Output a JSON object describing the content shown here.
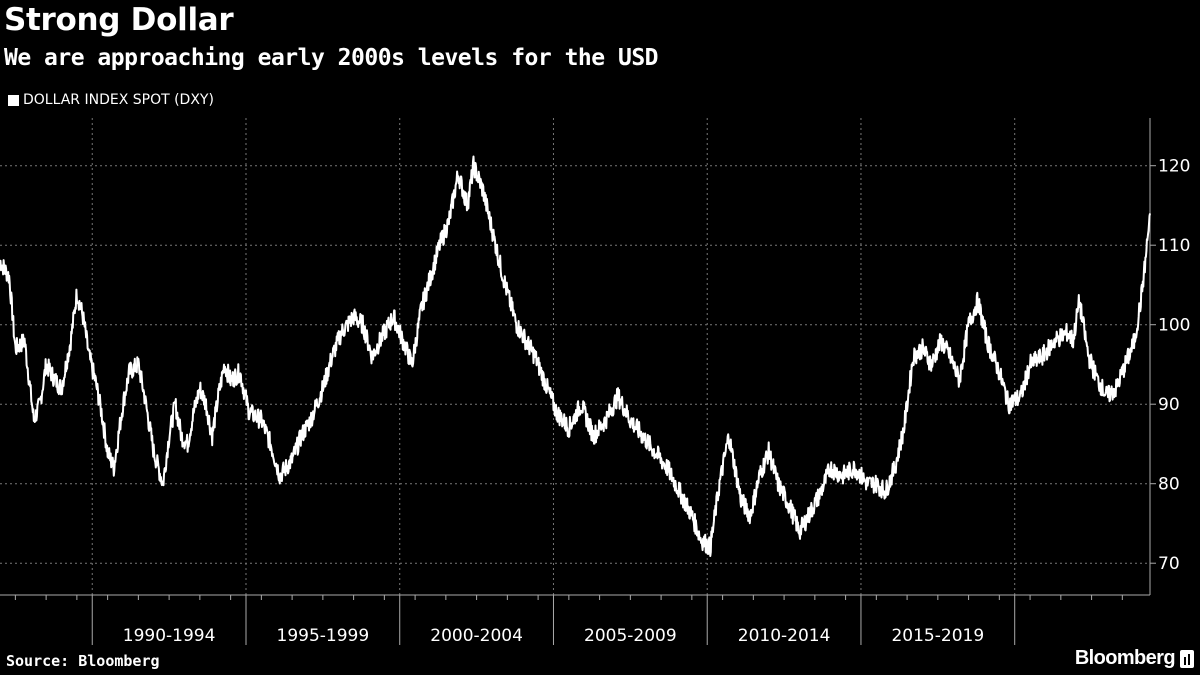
{
  "header": {
    "title": "Strong Dollar",
    "subtitle": "We are approaching early 2000s levels for the USD"
  },
  "legend": {
    "label": "DOLLAR INDEX SPOT (DXY)",
    "swatch_color": "#ffffff"
  },
  "footer": {
    "source": "Source: Bloomberg",
    "brand": "Bloomberg"
  },
  "colors": {
    "background": "#000000",
    "line": "#ffffff",
    "grid": "#777777",
    "axis": "#aaaaaa"
  },
  "chart_data": {
    "type": "line",
    "title": "Strong Dollar",
    "subtitle": "We are approaching early 2000s levels for the USD",
    "xlabel": "",
    "ylabel": "",
    "xlim": [
      1985.5,
      2022.9
    ],
    "ylim": [
      66,
      126
    ],
    "y_ticks": [
      70,
      80,
      90,
      100,
      110,
      120
    ],
    "x_ticks": [
      1988.5,
      1993.5,
      1998.5,
      2003.5,
      2008.5,
      2013.5,
      2018.5
    ],
    "x_tick_labels": [
      "1990-1994",
      "1995-1999",
      "2000-2004",
      "2005-2009",
      "2010-2014",
      "2015-2019"
    ],
    "grid": true,
    "legend_position": "top-left",
    "series": [
      {
        "name": "DOLLAR INDEX SPOT (DXY)",
        "x": [
          1985.5,
          1985.8,
          1986.0,
          1986.3,
          1986.6,
          1986.8,
          1987.0,
          1987.3,
          1987.5,
          1987.8,
          1988.0,
          1988.2,
          1988.4,
          1988.6,
          1988.8,
          1989.0,
          1989.2,
          1989.5,
          1989.7,
          1990.0,
          1990.2,
          1990.5,
          1990.8,
          1991.0,
          1991.2,
          1991.4,
          1991.6,
          1991.8,
          1992.0,
          1992.2,
          1992.4,
          1992.6,
          1992.8,
          1993.0,
          1993.3,
          1993.6,
          1994.0,
          1994.3,
          1994.6,
          1995.0,
          1995.3,
          1995.6,
          1996.0,
          1996.3,
          1996.6,
          1997.0,
          1997.3,
          1997.6,
          1998.0,
          1998.3,
          1998.6,
          1998.9,
          1999.2,
          1999.5,
          1999.8,
          2000.1,
          2000.4,
          2000.7,
          2000.9,
          2001.2,
          2001.5,
          2001.8,
          2002.0,
          2002.3,
          2002.6,
          2002.9,
          2003.2,
          2003.6,
          2004.0,
          2004.4,
          2004.8,
          2005.2,
          2005.6,
          2006.0,
          2006.4,
          2006.8,
          2007.2,
          2007.6,
          2008.0,
          2008.3,
          2008.6,
          2008.9,
          2009.2,
          2009.6,
          2009.9,
          2010.2,
          2010.5,
          2010.8,
          2011.2,
          2011.5,
          2011.8,
          2012.2,
          2012.5,
          2012.9,
          2013.3,
          2013.7,
          2014.0,
          2014.3,
          2014.6,
          2014.9,
          2015.2,
          2015.5,
          2015.8,
          2016.1,
          2016.4,
          2016.7,
          2017.0,
          2017.3,
          2017.6,
          2018.0,
          2018.3,
          2018.7,
          2019.0,
          2019.4,
          2019.8,
          2020.2,
          2020.4,
          2020.6,
          2020.9,
          2021.2,
          2021.5,
          2021.8,
          2022.1,
          2022.4,
          2022.6,
          2022.75,
          2022.9
        ],
        "values": [
          108,
          106,
          97,
          98,
          88,
          90,
          95,
          93,
          92,
          98,
          104,
          101,
          96,
          93,
          89,
          84,
          82,
          90,
          94,
          95,
          91,
          84,
          80,
          86,
          90,
          86,
          85,
          89,
          92,
          90,
          86,
          91,
          95,
          93,
          94,
          89,
          88,
          85,
          81,
          83,
          86,
          88,
          92,
          96,
          99,
          101,
          100,
          96,
          99,
          101,
          98,
          95,
          102,
          106,
          110,
          113,
          119,
          115,
          120,
          117,
          112,
          107,
          104,
          100,
          98,
          96,
          93,
          89,
          87,
          90,
          86,
          88,
          91,
          88,
          86,
          84,
          82,
          79,
          76,
          73,
          72,
          80,
          86,
          78,
          76,
          81,
          84,
          80,
          77,
          74,
          76,
          79,
          82,
          81,
          82,
          80,
          80,
          79,
          82,
          87,
          96,
          97,
          95,
          98,
          96,
          93,
          100,
          103,
          98,
          94,
          90,
          91,
          95,
          96,
          98,
          99,
          98,
          103,
          96,
          93,
          91,
          92,
          95,
          98,
          103,
          108,
          114
        ]
      }
    ]
  }
}
